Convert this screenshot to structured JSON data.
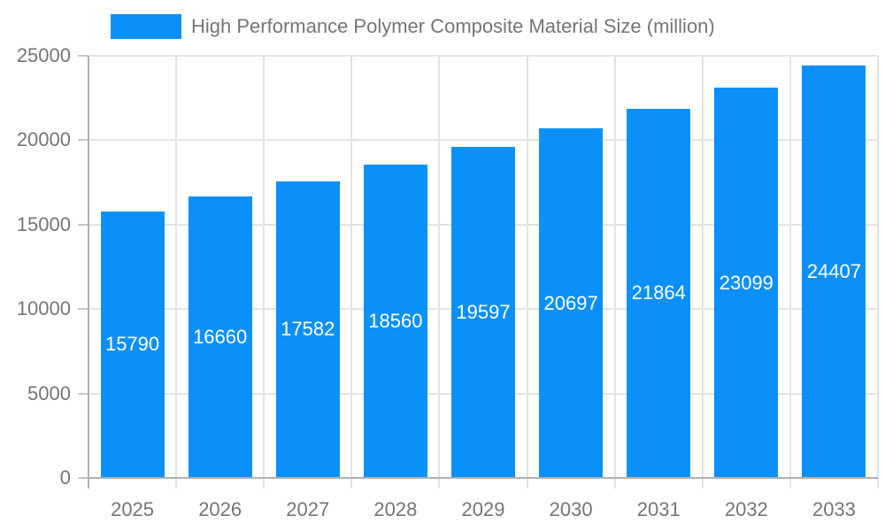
{
  "legend": {
    "label": "High Performance Polymer Composite Material Size (million)"
  },
  "colors": {
    "bar": "#0B90F9",
    "axis_text": "#757575",
    "axis_line": "#b1b1b1",
    "gridline": "#e3e3e3",
    "tick": "#c6c6c6",
    "value_label": "#ffffff",
    "background": "#ffffff"
  },
  "chart_data": {
    "type": "bar",
    "title": "High Performance Polymer Composite Material Size (million)",
    "categories": [
      "2025",
      "2026",
      "2027",
      "2028",
      "2029",
      "2030",
      "2031",
      "2032",
      "2033"
    ],
    "values": [
      15790,
      16660,
      17582,
      18560,
      19597,
      20697,
      21864,
      23099,
      24407
    ],
    "bar_labels": [
      15790,
      16660,
      17582,
      18560,
      19597,
      20697,
      21864,
      23099,
      24407
    ],
    "xlabel": "",
    "ylabel": "",
    "ylim": [
      0,
      25000
    ],
    "ytick_step": 5000,
    "yticks": [
      0,
      5000,
      10000,
      15000,
      20000,
      25000
    ],
    "grid": true,
    "legend_position": "top"
  }
}
